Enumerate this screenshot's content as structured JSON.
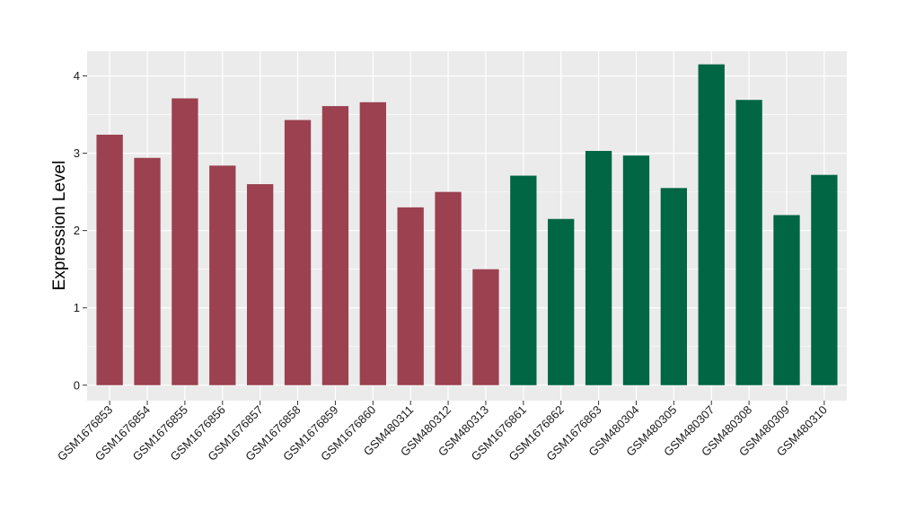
{
  "chart_data": {
    "type": "bar",
    "ylabel": "Expression Level",
    "xlabel": "",
    "ylim": [
      -0.2,
      4.32
    ],
    "yticks": [
      0,
      1,
      2,
      3,
      4
    ],
    "grid": true,
    "colors": {
      "group_a": "#9B4150",
      "group_b": "#006644",
      "panel": "#EBEBEB",
      "grid": "#FFFFFF"
    },
    "categories": [
      "GSM1676853",
      "GSM1676854",
      "GSM1676855",
      "GSM1676856",
      "GSM1676857",
      "GSM1676858",
      "GSM1676859",
      "GSM1676860",
      "GSM480311",
      "GSM480312",
      "GSM480313",
      "GSM1676861",
      "GSM1676862",
      "GSM1676863",
      "GSM480304",
      "GSM480305",
      "GSM480307",
      "GSM480308",
      "GSM480309",
      "GSM480310"
    ],
    "values": [
      3.24,
      2.94,
      3.71,
      2.84,
      2.6,
      3.43,
      3.61,
      3.66,
      2.3,
      2.5,
      1.5,
      2.71,
      2.15,
      3.03,
      2.97,
      2.55,
      4.15,
      3.69,
      2.2,
      2.72
    ],
    "groups": [
      "a",
      "a",
      "a",
      "a",
      "a",
      "a",
      "a",
      "a",
      "a",
      "a",
      "a",
      "b",
      "b",
      "b",
      "b",
      "b",
      "b",
      "b",
      "b",
      "b"
    ]
  }
}
